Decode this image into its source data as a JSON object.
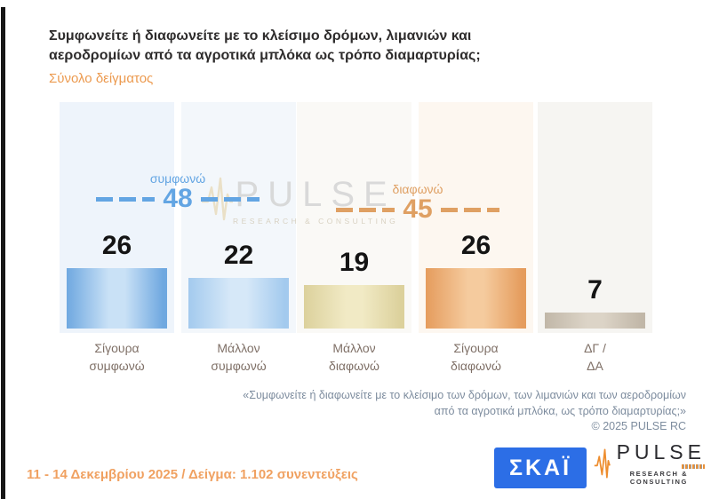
{
  "title_lines": [
    "Συμφωνείτε ή διαφωνείτε με το κλείσιμο δρόμων, λιμανιών και",
    "αεροδρομίων από τα αγροτικά μπλόκα ως τρόπο διαμαρτυρίας;"
  ],
  "subtitle": "Σύνολο δείγματος",
  "chart_data": {
    "type": "bar",
    "title": "Συμφωνείτε ή διαφωνείτε με το κλείσιμο δρόμων, λιμανιών και αεροδρομίων από τα αγροτικά μπλόκα ως τρόπο διαμαρτυρίας;",
    "subtitle": "Σύνολο δείγματος",
    "categories": [
      "Σίγουρα συμφωνώ",
      "Μάλλον συμφωνώ",
      "Μάλλον διαφωνώ",
      "Σίγουρα διαφωνώ",
      "ΔΓ / ΔΑ"
    ],
    "categories_display": [
      [
        "Σίγουρα",
        "συμφωνώ"
      ],
      [
        "Μάλλον",
        "συμφωνώ"
      ],
      [
        "Μάλλον",
        "διαφωνώ"
      ],
      [
        "Σίγουρα",
        "διαφωνώ"
      ],
      [
        "ΔΓ /",
        "ΔΑ"
      ]
    ],
    "values": [
      26,
      22,
      19,
      26,
      7
    ],
    "unit": "%",
    "ylim": [
      0,
      100
    ],
    "grid": false,
    "groups": [
      {
        "label": "συμφωνώ",
        "value": "48",
        "color": "#63a5e3",
        "spans_categories": [
          "Σίγουρα συμφωνώ",
          "Μάλλον συμφωνώ"
        ]
      },
      {
        "label": "διαφωνώ",
        "value": "45",
        "color": "#dfa063",
        "spans_categories": [
          "Μάλλον διαφωνώ",
          "Σίγουρα διαφωνώ"
        ]
      }
    ],
    "bar_styles": [
      {
        "edge": "#6fa8e0",
        "mid": "#c9e1f6"
      },
      {
        "edge": "#a3caee",
        "mid": "#d6e8f8"
      },
      {
        "edge": "#dcd19c",
        "mid": "#f1eac5"
      },
      {
        "edge": "#e59c5d",
        "mid": "#f5cb9e"
      },
      {
        "edge": "#c1b7a8",
        "mid": "#dcd4c7"
      }
    ],
    "band_colors": [
      "#eef4fb",
      "#f3f7fb",
      "#faf9f6",
      "#fdf7f0",
      "#f6f5f2"
    ]
  },
  "watermark": {
    "name": "PULSE",
    "sub": "RESEARCH & CONSULTING"
  },
  "footnote": {
    "lines": [
      "«Συμφωνείτε ή διαφωνείτε με το κλείσιμο των δρόμων, των λιμανιών και των αεροδρομίων",
      "από τα αγροτικά μπλόκα, ως τρόπο διαμαρτυρίας;»"
    ],
    "copyright": "©  2025  PULSE RC"
  },
  "footer": {
    "date_sample": "11 - 14 Δεκεμβρίου 2025  /  Δείγμα:  1.102 συνεντεύξεις",
    "skai_logo": "ΣΚΑΪ",
    "pulse_logo": "PULSE",
    "pulse_logo_sub": "RESEARCH & CONSULTING"
  }
}
